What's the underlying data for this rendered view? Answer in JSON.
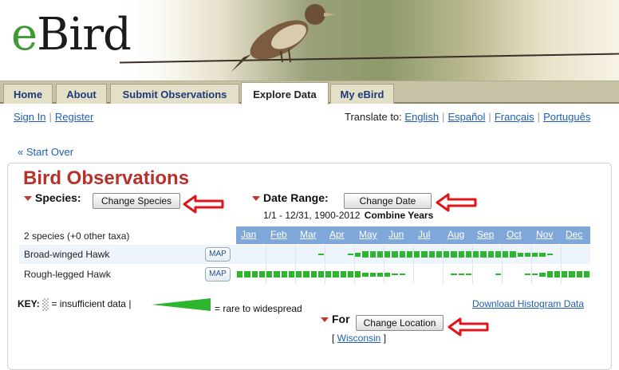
{
  "brand": {
    "logo_e": "e",
    "logo_rest": "Bird"
  },
  "nav": {
    "tabs": [
      {
        "label": "Home",
        "active": false
      },
      {
        "label": "About",
        "active": false
      },
      {
        "label": "Submit Observations",
        "active": false
      },
      {
        "label": "Explore Data",
        "active": true
      },
      {
        "label": "My eBird",
        "active": false
      }
    ]
  },
  "account": {
    "sign_in": "Sign In",
    "register": "Register"
  },
  "translate": {
    "label": "Translate to:",
    "languages": [
      "English",
      "Español",
      "Français",
      "Português"
    ]
  },
  "start_over": "« Start Over",
  "page_title": "Bird Observations",
  "species": {
    "label": "Species:",
    "button": "Change Species"
  },
  "date_range": {
    "label": "Date Range:",
    "button": "Change Date",
    "value": "1/1 - 12/31, 1900-2012",
    "mode": "Combine Years"
  },
  "table": {
    "count_text": "2 species (+0 other taxa)",
    "months": [
      "Jan",
      "Feb",
      "Mar",
      "Apr",
      "May",
      "Jun",
      "Jul",
      "Aug",
      "Sep",
      "Oct",
      "Nov",
      "Dec"
    ],
    "map_label": "MAP",
    "rows": [
      {
        "name": "Broad-winged Hawk",
        "weeks": [
          0,
          0,
          0,
          0,
          0,
          0,
          0,
          0,
          0,
          0,
          0,
          1,
          0,
          0,
          0,
          1,
          2,
          3,
          3,
          3,
          3,
          3,
          3,
          3,
          3,
          3,
          3,
          3,
          3,
          3,
          3,
          3,
          3,
          3,
          3,
          3,
          3,
          3,
          2,
          2,
          2,
          2,
          1,
          0,
          0,
          0,
          0,
          0
        ]
      },
      {
        "name": "Rough-legged Hawk",
        "weeks": [
          3,
          3,
          3,
          3,
          3,
          3,
          3,
          3,
          3,
          3,
          3,
          3,
          3,
          3,
          3,
          3,
          3,
          2,
          2,
          2,
          2,
          1,
          1,
          0,
          0,
          0,
          0,
          0,
          0,
          1,
          1,
          1,
          0,
          0,
          0,
          1,
          0,
          0,
          0,
          1,
          1,
          2,
          3,
          3,
          3,
          3,
          3,
          3
        ]
      }
    ]
  },
  "key": {
    "label": "KEY:",
    "insufficient": "= insufficient data |",
    "range": "= rare to widespread"
  },
  "download": "Download Histogram Data",
  "location": {
    "label": "For",
    "button": "Change Location",
    "value": "Wisconsin"
  },
  "colors": {
    "accent_red": "#b5312a",
    "bar_green": "#2db52d",
    "month_header": "#7fa7da",
    "link_blue": "#1f5fb5"
  }
}
